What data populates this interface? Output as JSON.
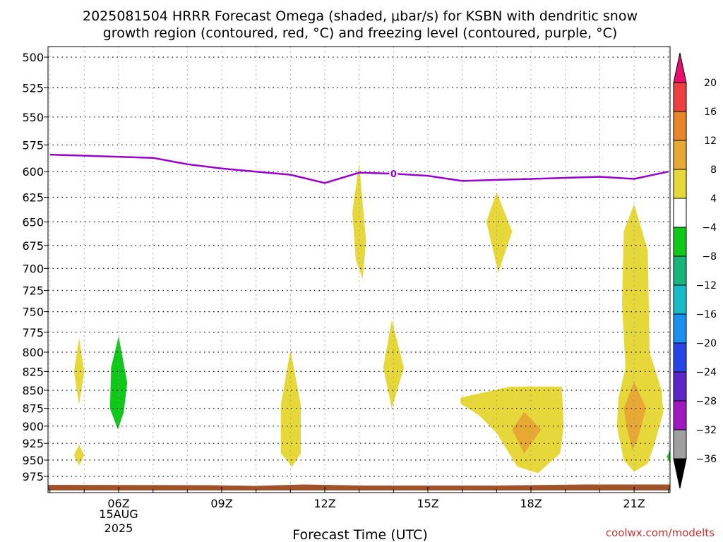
{
  "chart_data": {
    "type": "heatmap",
    "title_lines": [
      "2025081504 HRRR Forecast Omega (shaded, μbar/s) for KSBN with dendritic snow",
      "growth region (contoured, red, °C) and freezing level (contoured, purple, °C)"
    ],
    "xlabel": "Forecast Time (UTC)",
    "x_ticks": [
      {
        "hour": 6,
        "label": "06Z"
      },
      {
        "hour": 9,
        "label": "09Z"
      },
      {
        "hour": 12,
        "label": "12Z"
      },
      {
        "hour": 15,
        "label": "15Z"
      },
      {
        "hour": 18,
        "label": "18Z"
      },
      {
        "hour": 21,
        "label": "21Z"
      }
    ],
    "date_label": [
      "15AUG",
      "2025"
    ],
    "xlim_hours": [
      4,
      22
    ],
    "y_ticks": [
      500,
      525,
      550,
      575,
      600,
      625,
      650,
      675,
      700,
      725,
      750,
      775,
      800,
      825,
      850,
      875,
      900,
      925,
      950,
      975
    ],
    "ylim_hpa": [
      495,
      995
    ],
    "y_scale": "log",
    "grid": "dotted",
    "freezing_level": {
      "label": "0",
      "color": "#9900cc",
      "hours": [
        4,
        7,
        8,
        9,
        10,
        11,
        12,
        13,
        14,
        15,
        16,
        17,
        18,
        19,
        20,
        21,
        22
      ],
      "hpa": [
        584,
        587,
        593,
        597,
        600,
        603,
        611,
        601,
        602,
        604,
        609,
        608,
        607,
        606,
        605,
        607,
        600
      ]
    },
    "omega_regions": [
      {
        "band": "4 to 8",
        "points": [
          [
            4.85,
            782
          ],
          [
            5.0,
            825
          ],
          [
            4.85,
            870
          ],
          [
            4.7,
            825
          ]
        ]
      },
      {
        "band": "4 to 8",
        "points": [
          [
            4.85,
            927
          ],
          [
            5.0,
            943
          ],
          [
            4.85,
            958
          ],
          [
            4.7,
            943
          ]
        ]
      },
      {
        "band": "-8 to -4",
        "points": [
          [
            6.0,
            780
          ],
          [
            6.25,
            840
          ],
          [
            6.15,
            880
          ],
          [
            5.98,
            905
          ],
          [
            5.75,
            875
          ],
          [
            5.78,
            820
          ]
        ]
      },
      {
        "band": "4 to 8",
        "points": [
          [
            11.0,
            797
          ],
          [
            11.3,
            870
          ],
          [
            11.3,
            940
          ],
          [
            11.05,
            960
          ],
          [
            10.72,
            940
          ],
          [
            10.72,
            870
          ]
        ]
      },
      {
        "band": "4 to 8",
        "points": [
          [
            13.0,
            592
          ],
          [
            13.2,
            670
          ],
          [
            13.1,
            712
          ],
          [
            12.9,
            690
          ],
          [
            12.8,
            640
          ]
        ]
      },
      {
        "band": "4 to 8",
        "points": [
          [
            13.95,
            760
          ],
          [
            14.3,
            820
          ],
          [
            13.95,
            875
          ],
          [
            13.7,
            820
          ]
        ]
      },
      {
        "band": "4 to 8",
        "points": [
          [
            17.0,
            620
          ],
          [
            17.45,
            660
          ],
          [
            17.05,
            705
          ],
          [
            16.7,
            650
          ]
        ]
      },
      {
        "band": "4 to 8",
        "points": [
          [
            17.4,
            845
          ],
          [
            18.9,
            845
          ],
          [
            18.95,
            900
          ],
          [
            18.85,
            940
          ],
          [
            18.2,
            970
          ],
          [
            17.6,
            960
          ],
          [
            17.0,
            910
          ],
          [
            16.5,
            885
          ],
          [
            15.95,
            868
          ],
          [
            15.95,
            860
          ]
        ]
      },
      {
        "band": "8 to 12",
        "points": [
          [
            17.8,
            880
          ],
          [
            18.3,
            905
          ],
          [
            17.8,
            940
          ],
          [
            17.45,
            905
          ]
        ]
      },
      {
        "band": "4 to 8",
        "points": [
          [
            21.0,
            632
          ],
          [
            21.4,
            680
          ],
          [
            21.45,
            800
          ],
          [
            21.8,
            850
          ],
          [
            21.85,
            880
          ],
          [
            21.6,
            925
          ],
          [
            21.4,
            955
          ],
          [
            21.0,
            968
          ],
          [
            20.7,
            950
          ],
          [
            20.5,
            900
          ],
          [
            20.55,
            860
          ],
          [
            20.75,
            820
          ],
          [
            20.65,
            740
          ],
          [
            20.7,
            660
          ]
        ]
      },
      {
        "band": "8 to 12",
        "points": [
          [
            21.0,
            838
          ],
          [
            21.35,
            875
          ],
          [
            21.1,
            920
          ],
          [
            20.95,
            935
          ],
          [
            20.8,
            905
          ],
          [
            20.7,
            875
          ]
        ]
      },
      {
        "band": "-8 to -4",
        "points": [
          [
            22.05,
            935
          ],
          [
            22.05,
            955
          ],
          [
            21.95,
            945
          ]
        ]
      }
    ],
    "colorbar": {
      "bands": [
        {
          "range": "above 20",
          "color": "#e8106c"
        },
        {
          "range": "16 to 20",
          "color": "#ee4040"
        },
        {
          "range": "12 to 16",
          "color": "#ea8428"
        },
        {
          "range": "8 to 12",
          "color": "#e8a834"
        },
        {
          "range": "4 to 8",
          "color": "#e6d83a"
        },
        {
          "range": "-4 to 4",
          "color": "#ffffff"
        },
        {
          "range": "-8 to -4",
          "color": "#10c81a"
        },
        {
          "range": "-12 to -8",
          "color": "#18b47c"
        },
        {
          "range": "-16 to -12",
          "color": "#16bcc8"
        },
        {
          "range": "-20 to -16",
          "color": "#1c90f0"
        },
        {
          "range": "-24 to -20",
          "color": "#2846e8"
        },
        {
          "range": "-28 to -24",
          "color": "#5c26c8"
        },
        {
          "range": "-32 to -28",
          "color": "#a018c0"
        },
        {
          "range": "-36 to -32",
          "color": "#a0a0a0"
        },
        {
          "range": "below -36",
          "color": "#000000"
        }
      ],
      "tick_labels": [
        "20",
        "16",
        "12",
        "8",
        "4",
        "−4",
        "−8",
        "−12",
        "−16",
        "−20",
        "−24",
        "−28",
        "−32",
        "−36"
      ]
    },
    "ground_color": "#a0522d"
  },
  "credit": "coolwx.com/modelts"
}
